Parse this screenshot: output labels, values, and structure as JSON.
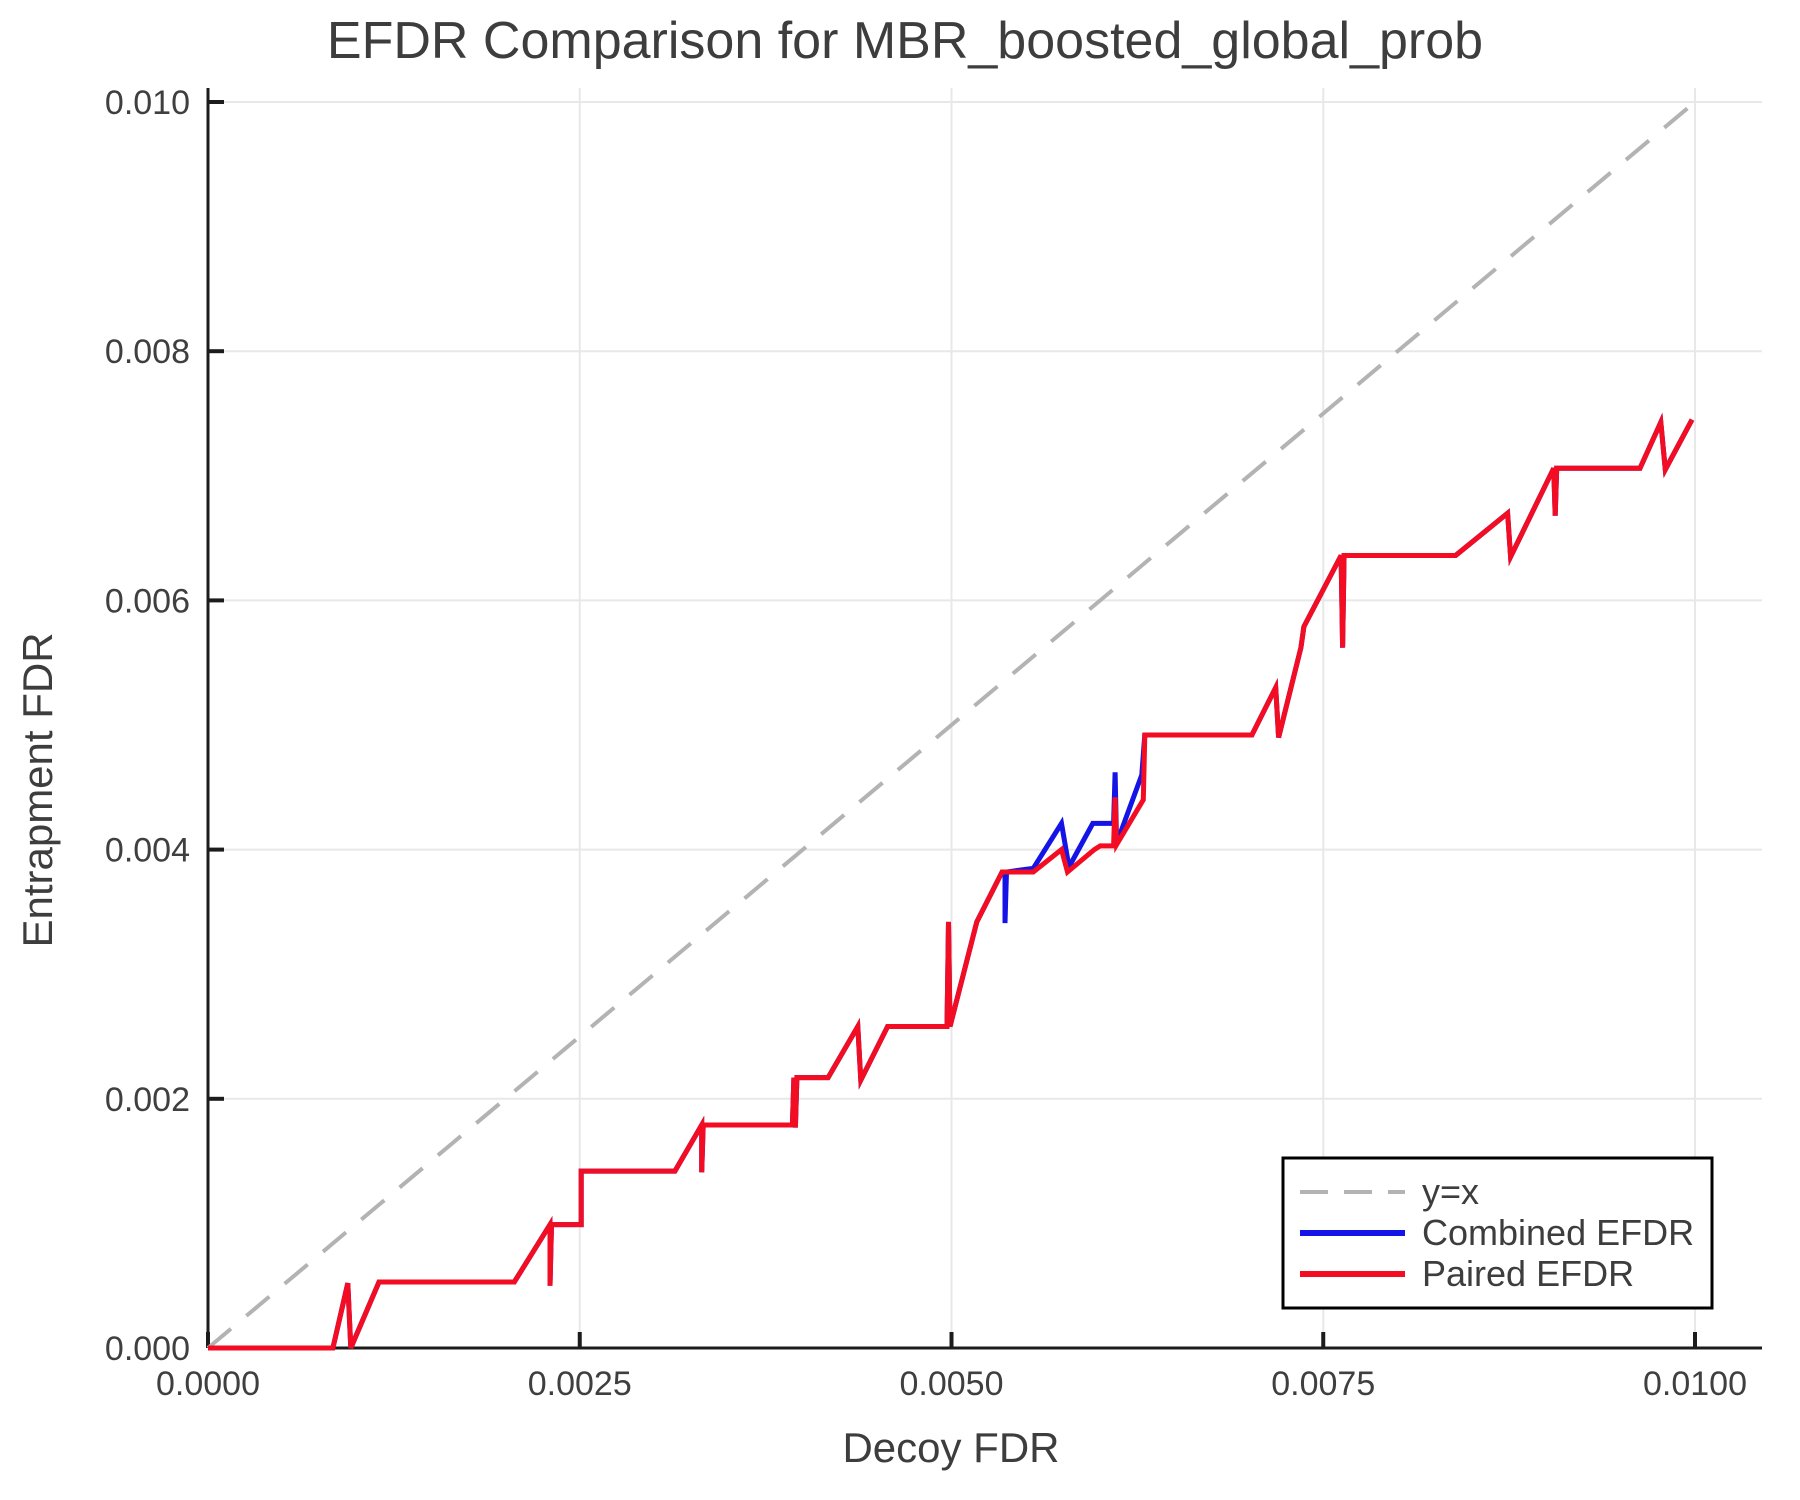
{
  "chart_data": {
    "type": "line",
    "title": "EFDR Comparison for MBR_boosted_global_prob",
    "xlabel": "Decoy FDR",
    "ylabel": "Entrapment FDR",
    "xlim": [
      0.0,
      0.0105
    ],
    "ylim": [
      0.0,
      0.0101
    ],
    "grid": true,
    "legend_position": "lower right",
    "x_ticks": {
      "values": [
        0.0,
        0.0025,
        0.005,
        0.0075,
        0.01
      ],
      "labels": [
        "0.0000",
        "0.0025",
        "0.0050",
        "0.0075",
        "0.0100"
      ]
    },
    "y_ticks": {
      "values": [
        0.0,
        0.002,
        0.004,
        0.006,
        0.008,
        0.01
      ],
      "labels": [
        "0.000",
        "0.002",
        "0.004",
        "0.006",
        "0.008",
        "0.010"
      ]
    },
    "colors": {
      "reference": "#b3b3b3",
      "combined": "#1414e6",
      "paired": "#f20d23",
      "grid": "#e8e8e8",
      "spine": "#1c1c1c"
    },
    "series": [
      {
        "name": "y=x",
        "style": "dashed",
        "color": "#b3b3b3",
        "points": [
          [
            0.0,
            0.0
          ],
          [
            0.01,
            0.01
          ]
        ]
      },
      {
        "name": "Combined EFDR",
        "style": "solid",
        "color": "#1414e6",
        "points": [
          [
            0.0,
            0.0
          ],
          [
            0.00084,
            0.0
          ],
          [
            0.00094,
            0.00052
          ],
          [
            0.00096,
            0.0
          ],
          [
            0.00115,
            0.00053
          ],
          [
            0.00206,
            0.00053
          ],
          [
            0.0023,
            0.00099
          ],
          [
            0.0023,
            0.0005
          ],
          [
            0.00231,
            0.00099
          ],
          [
            0.00251,
            0.00099
          ],
          [
            0.00251,
            0.00142
          ],
          [
            0.00314,
            0.00142
          ],
          [
            0.00332,
            0.00179
          ],
          [
            0.00332,
            0.00141
          ],
          [
            0.00333,
            0.00179
          ],
          [
            0.00393,
            0.00179
          ],
          [
            0.00394,
            0.00217
          ],
          [
            0.00395,
            0.00177
          ],
          [
            0.00396,
            0.00217
          ],
          [
            0.00417,
            0.00217
          ],
          [
            0.00437,
            0.00258
          ],
          [
            0.00439,
            0.00215
          ],
          [
            0.00457,
            0.00258
          ],
          [
            0.00497,
            0.00258
          ],
          [
            0.00498,
            0.00342
          ],
          [
            0.00499,
            0.00258
          ],
          [
            0.00517,
            0.00342
          ],
          [
            0.00534,
            0.00382
          ],
          [
            0.00536,
            0.00382
          ],
          [
            0.00536,
            0.00341
          ],
          [
            0.00537,
            0.00382
          ],
          [
            0.00555,
            0.00385
          ],
          [
            0.00574,
            0.00421
          ],
          [
            0.00579,
            0.00386
          ],
          [
            0.00595,
            0.00421
          ],
          [
            0.00609,
            0.00421
          ],
          [
            0.0061,
            0.00462
          ],
          [
            0.00611,
            0.00405
          ],
          [
            0.00628,
            0.0046
          ],
          [
            0.0063,
            0.00492
          ],
          [
            0.00702,
            0.00492
          ],
          [
            0.00718,
            0.0053
          ],
          [
            0.0072,
            0.0049
          ],
          [
            0.00735,
            0.00562
          ],
          [
            0.00737,
            0.00579
          ],
          [
            0.00762,
            0.00636
          ],
          [
            0.00763,
            0.00562
          ],
          [
            0.00764,
            0.00636
          ],
          [
            0.00839,
            0.00636
          ],
          [
            0.00874,
            0.0067
          ],
          [
            0.00876,
            0.00635
          ],
          [
            0.00905,
            0.00706
          ],
          [
            0.00906,
            0.00668
          ],
          [
            0.00907,
            0.00706
          ],
          [
            0.00963,
            0.00706
          ],
          [
            0.00977,
            0.00743
          ],
          [
            0.0098,
            0.00705
          ],
          [
            0.00998,
            0.00745
          ]
        ]
      },
      {
        "name": "Paired EFDR",
        "style": "solid",
        "color": "#f20d23",
        "points": [
          [
            0.0,
            0.0
          ],
          [
            0.00084,
            0.0
          ],
          [
            0.00094,
            0.00052
          ],
          [
            0.00096,
            0.0
          ],
          [
            0.00115,
            0.00053
          ],
          [
            0.00206,
            0.00053
          ],
          [
            0.0023,
            0.00099
          ],
          [
            0.0023,
            0.0005
          ],
          [
            0.00231,
            0.00099
          ],
          [
            0.00251,
            0.00099
          ],
          [
            0.00251,
            0.00142
          ],
          [
            0.00314,
            0.00142
          ],
          [
            0.00332,
            0.00179
          ],
          [
            0.00332,
            0.00141
          ],
          [
            0.00333,
            0.00179
          ],
          [
            0.00393,
            0.00179
          ],
          [
            0.00394,
            0.00217
          ],
          [
            0.00395,
            0.00177
          ],
          [
            0.00396,
            0.00217
          ],
          [
            0.00417,
            0.00217
          ],
          [
            0.00437,
            0.00258
          ],
          [
            0.00439,
            0.00215
          ],
          [
            0.00457,
            0.00258
          ],
          [
            0.00497,
            0.00258
          ],
          [
            0.00498,
            0.00342
          ],
          [
            0.00499,
            0.00258
          ],
          [
            0.00517,
            0.00342
          ],
          [
            0.00534,
            0.00382
          ],
          [
            0.00555,
            0.00382
          ],
          [
            0.00574,
            0.004
          ],
          [
            0.00578,
            0.00382
          ],
          [
            0.00596,
            0.004
          ],
          [
            0.006,
            0.00403
          ],
          [
            0.00609,
            0.00403
          ],
          [
            0.0061,
            0.00442
          ],
          [
            0.00611,
            0.00404
          ],
          [
            0.00629,
            0.0044
          ],
          [
            0.0063,
            0.00492
          ],
          [
            0.00702,
            0.00492
          ],
          [
            0.00718,
            0.0053
          ],
          [
            0.0072,
            0.0049
          ],
          [
            0.00735,
            0.00562
          ],
          [
            0.00737,
            0.00579
          ],
          [
            0.00762,
            0.00636
          ],
          [
            0.00763,
            0.00562
          ],
          [
            0.00764,
            0.00636
          ],
          [
            0.00839,
            0.00636
          ],
          [
            0.00874,
            0.0067
          ],
          [
            0.00876,
            0.00635
          ],
          [
            0.00905,
            0.00706
          ],
          [
            0.00906,
            0.00668
          ],
          [
            0.00907,
            0.00706
          ],
          [
            0.00963,
            0.00706
          ],
          [
            0.00977,
            0.00743
          ],
          [
            0.0098,
            0.00705
          ],
          [
            0.00998,
            0.00745
          ]
        ]
      }
    ]
  }
}
